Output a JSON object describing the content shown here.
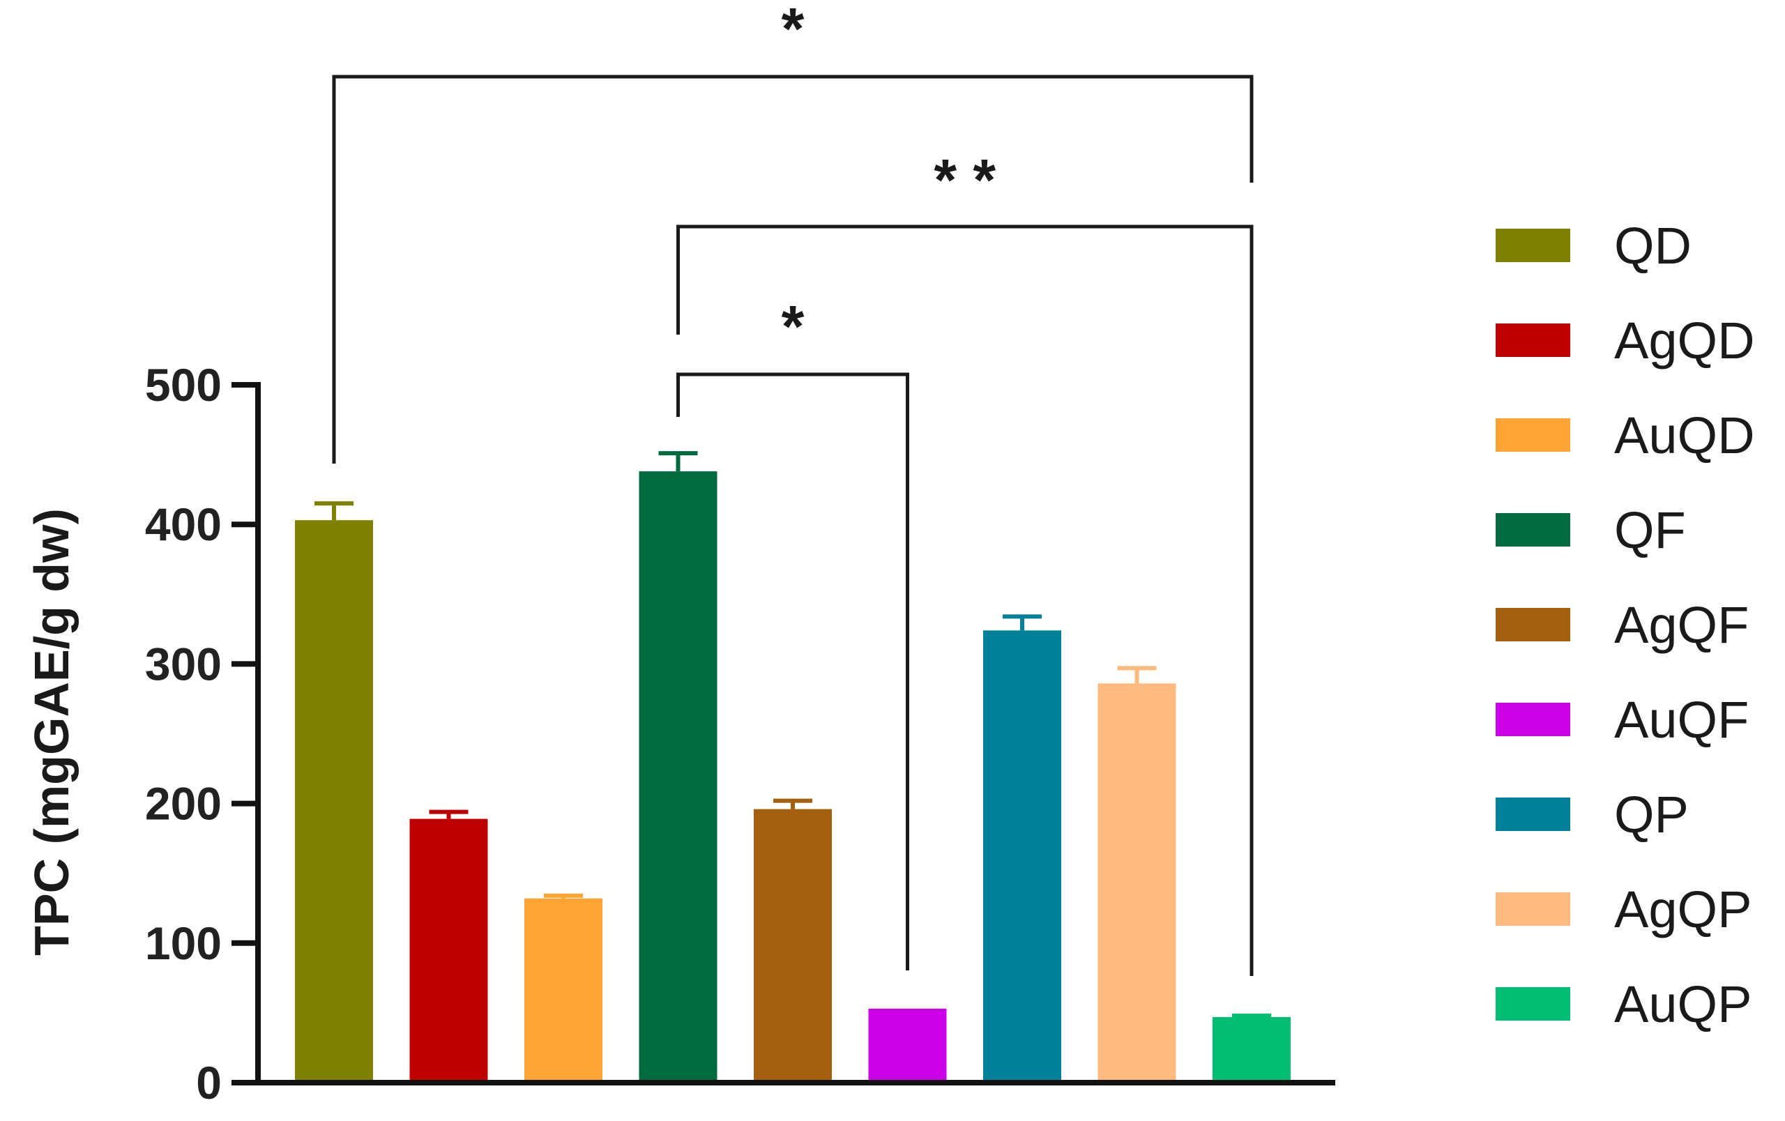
{
  "chart_data": {
    "type": "bar",
    "title": "",
    "xlabel": "",
    "ylabel": "TPC (mgGAE/g dw)",
    "ylim": [
      0,
      500
    ],
    "yticks": [
      "0",
      "100",
      "200",
      "300",
      "400",
      "500"
    ],
    "grid": false,
    "legend_position": "right",
    "categories": [
      "QD",
      "AgQD",
      "AuQD",
      "QF",
      "AgQF",
      "AuQF",
      "QP",
      "AgQP",
      "AuQP"
    ],
    "values": [
      403,
      189,
      132,
      438,
      196,
      53,
      324,
      286,
      47
    ],
    "errors": [
      12,
      5,
      2,
      13,
      6,
      0,
      10,
      11,
      1
    ],
    "colors": [
      "#808000",
      "#C00000",
      "#FFA333",
      "#006B3E",
      "#A5600F",
      "#CC00E6",
      "#00819A",
      "#FFB97C",
      "#00BF75"
    ],
    "significance": [
      {
        "from": "QD",
        "to": "AuQP",
        "label": "*"
      },
      {
        "from": "QF",
        "to": "AuQP",
        "label": "* *"
      },
      {
        "from": "QF",
        "to": "AuQF",
        "label": "*"
      }
    ]
  }
}
